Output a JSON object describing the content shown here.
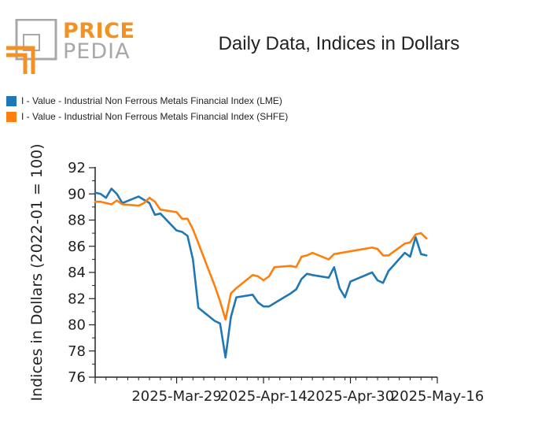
{
  "logo": {
    "top": "PRICE",
    "bottom": "PEDIA",
    "colors": {
      "orange": "#f39222",
      "gray": "#a8a8a8"
    }
  },
  "chart_data": {
    "type": "line",
    "title": "Daily Data, Indices in Dollars",
    "xlabel": "",
    "ylabel": "Indices in Dollars (2022-01 = 100)",
    "xlim": [
      "2025-03-14",
      "2025-05-16"
    ],
    "ylim": [
      76,
      92
    ],
    "y_ticks": [
      76,
      78,
      80,
      82,
      84,
      86,
      88,
      90,
      92
    ],
    "x_ticks": [
      "2025-Mar-29",
      "2025-Apr-14",
      "2025-Apr-30",
      "2025-May-16"
    ],
    "x_tick_dates": [
      "2025-03-29",
      "2025-04-14",
      "2025-04-30",
      "2025-05-16"
    ],
    "grid": false,
    "legend_position": "top-left",
    "series": [
      {
        "name": "I - Value - Industrial Non Ferrous Metals Financial Index (LME)",
        "color": "#1f77b4",
        "points": [
          [
            "2025-03-14",
            90.1
          ],
          [
            "2025-03-15",
            90.0
          ],
          [
            "2025-03-16",
            89.7
          ],
          [
            "2025-03-17",
            90.4
          ],
          [
            "2025-03-18",
            90.0
          ],
          [
            "2025-03-19",
            89.3
          ],
          [
            "2025-03-22",
            89.8
          ],
          [
            "2025-03-24",
            89.3
          ],
          [
            "2025-03-25",
            88.4
          ],
          [
            "2025-03-26",
            88.5
          ],
          [
            "2025-03-29",
            87.2
          ],
          [
            "2025-03-30",
            87.1
          ],
          [
            "2025-03-31",
            86.8
          ],
          [
            "2025-04-01",
            85.0
          ],
          [
            "2025-04-02",
            81.3
          ],
          [
            "2025-04-05",
            80.3
          ],
          [
            "2025-04-06",
            80.1
          ],
          [
            "2025-04-07",
            77.5
          ],
          [
            "2025-04-08",
            80.6
          ],
          [
            "2025-04-09",
            82.1
          ],
          [
            "2025-04-12",
            82.3
          ],
          [
            "2025-04-13",
            81.7
          ],
          [
            "2025-04-14",
            81.4
          ],
          [
            "2025-04-15",
            81.4
          ],
          [
            "2025-04-19",
            82.4
          ],
          [
            "2025-04-20",
            82.7
          ],
          [
            "2025-04-21",
            83.5
          ],
          [
            "2025-04-22",
            83.9
          ],
          [
            "2025-04-23",
            83.8
          ],
          [
            "2025-04-26",
            83.6
          ],
          [
            "2025-04-27",
            84.4
          ],
          [
            "2025-04-28",
            82.8
          ],
          [
            "2025-04-29",
            82.1
          ],
          [
            "2025-04-30",
            83.3
          ],
          [
            "2025-05-04",
            84.0
          ],
          [
            "2025-05-05",
            83.4
          ],
          [
            "2025-05-06",
            83.2
          ],
          [
            "2025-05-07",
            84.1
          ],
          [
            "2025-05-10",
            85.5
          ],
          [
            "2025-05-11",
            85.2
          ],
          [
            "2025-05-12",
            86.7
          ],
          [
            "2025-05-13",
            85.4
          ],
          [
            "2025-05-14",
            85.3
          ]
        ]
      },
      {
        "name": "I - Value - Industrial Non Ferrous Metals Financial Index (SHFE)",
        "color": "#ff7f0e",
        "points": [
          [
            "2025-03-14",
            89.4
          ],
          [
            "2025-03-15",
            89.4
          ],
          [
            "2025-03-16",
            89.3
          ],
          [
            "2025-03-17",
            89.2
          ],
          [
            "2025-03-18",
            89.5
          ],
          [
            "2025-03-19",
            89.2
          ],
          [
            "2025-03-22",
            89.1
          ],
          [
            "2025-03-23",
            89.3
          ],
          [
            "2025-03-24",
            89.7
          ],
          [
            "2025-03-25",
            89.4
          ],
          [
            "2025-03-26",
            88.8
          ],
          [
            "2025-03-29",
            88.6
          ],
          [
            "2025-03-30",
            88.1
          ],
          [
            "2025-03-31",
            88.1
          ],
          [
            "2025-04-01",
            87.3
          ],
          [
            "2025-04-05",
            83.0
          ],
          [
            "2025-04-06",
            81.8
          ],
          [
            "2025-04-07",
            80.4
          ],
          [
            "2025-04-08",
            82.4
          ],
          [
            "2025-04-09",
            82.8
          ],
          [
            "2025-04-12",
            83.8
          ],
          [
            "2025-04-13",
            83.7
          ],
          [
            "2025-04-14",
            83.4
          ],
          [
            "2025-04-15",
            83.7
          ],
          [
            "2025-04-16",
            84.4
          ],
          [
            "2025-04-19",
            84.5
          ],
          [
            "2025-04-20",
            84.4
          ],
          [
            "2025-04-21",
            85.2
          ],
          [
            "2025-04-22",
            85.3
          ],
          [
            "2025-04-23",
            85.5
          ],
          [
            "2025-04-26",
            85.0
          ],
          [
            "2025-04-27",
            85.4
          ],
          [
            "2025-05-04",
            85.9
          ],
          [
            "2025-05-05",
            85.8
          ],
          [
            "2025-05-06",
            85.3
          ],
          [
            "2025-05-07",
            85.3
          ],
          [
            "2025-05-10",
            86.2
          ],
          [
            "2025-05-11",
            86.3
          ],
          [
            "2025-05-12",
            86.9
          ],
          [
            "2025-05-13",
            87.0
          ],
          [
            "2025-05-14",
            86.6
          ]
        ]
      }
    ]
  }
}
